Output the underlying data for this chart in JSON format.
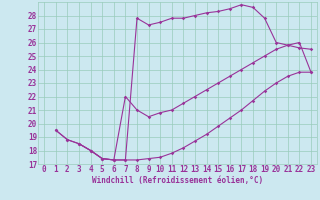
{
  "xlabel": "Windchill (Refroidissement éolien,°C)",
  "background_color": "#cce8f0",
  "grid_color": "#99ccbb",
  "line_color": "#993399",
  "spine_color": "#99ccbb",
  "xlim": [
    -0.5,
    23.5
  ],
  "ylim": [
    17,
    29
  ],
  "xticks": [
    0,
    1,
    2,
    3,
    4,
    5,
    6,
    7,
    8,
    9,
    10,
    11,
    12,
    13,
    14,
    15,
    16,
    17,
    18,
    19,
    20,
    21,
    22,
    23
  ],
  "yticks": [
    17,
    18,
    19,
    20,
    21,
    22,
    23,
    24,
    25,
    26,
    27,
    28
  ],
  "series": [
    {
      "x": [
        1,
        2,
        3,
        4,
        5,
        6,
        7,
        8,
        9,
        10,
        11,
        12,
        13,
        14,
        15,
        16,
        17,
        18,
        19,
        20,
        21,
        22,
        23
      ],
      "y": [
        19.5,
        18.8,
        18.5,
        18.0,
        17.4,
        17.3,
        17.3,
        27.8,
        27.3,
        27.5,
        27.8,
        27.8,
        28.0,
        28.2,
        28.3,
        28.5,
        28.8,
        28.6,
        27.8,
        26.0,
        25.8,
        25.6,
        25.5
      ]
    },
    {
      "x": [
        1,
        2,
        3,
        4,
        5,
        6,
        7,
        8,
        9,
        10,
        11,
        12,
        13,
        14,
        15,
        16,
        17,
        18,
        19,
        20,
        21,
        22,
        23
      ],
      "y": [
        19.5,
        18.8,
        18.5,
        18.0,
        17.4,
        17.3,
        17.3,
        17.3,
        17.4,
        17.5,
        17.8,
        18.2,
        18.7,
        19.2,
        19.8,
        20.4,
        21.0,
        21.7,
        22.4,
        23.0,
        23.5,
        23.8,
        23.8
      ]
    },
    {
      "x": [
        3,
        4,
        5,
        6,
        7,
        8,
        9,
        10,
        11,
        12,
        13,
        14,
        15,
        16,
        17,
        18,
        19,
        20,
        21,
        22,
        23
      ],
      "y": [
        18.5,
        18.0,
        17.4,
        17.3,
        22.0,
        21.0,
        20.5,
        20.8,
        21.0,
        21.5,
        22.0,
        22.5,
        23.0,
        23.5,
        24.0,
        24.5,
        25.0,
        25.5,
        25.8,
        26.0,
        23.8
      ]
    }
  ],
  "tick_fontsize": 5.5,
  "xlabel_fontsize": 5.5
}
